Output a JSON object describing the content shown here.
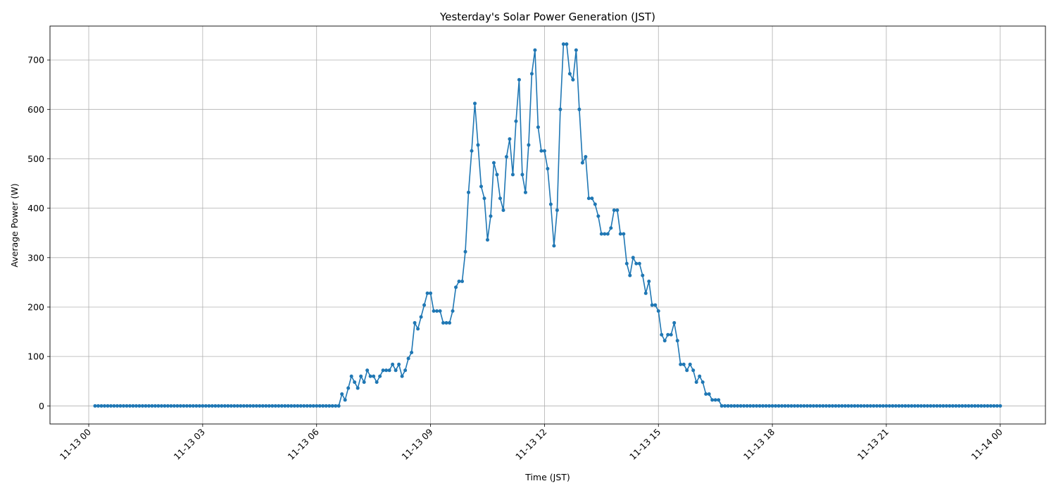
{
  "chart_data": {
    "type": "line",
    "title": "Yesterday's Solar Power Generation (JST)",
    "xlabel": "Time (JST)",
    "ylabel": "Average Power (W)",
    "ylim": [
      -36.6,
      768.6
    ],
    "xlim_hours": [
      -1.02,
      25.19
    ],
    "grid": true,
    "marker": "dot",
    "color": "#1f77b4",
    "x_ticks": [
      "11-13 00",
      "11-13 03",
      "11-13 06",
      "11-13 09",
      "11-13 12",
      "11-13 15",
      "11-13 18",
      "11-13 21",
      "11-14 00"
    ],
    "y_ticks": [
      0,
      100,
      200,
      300,
      400,
      500,
      600,
      700
    ],
    "x": [
      "11-13 00:10",
      "11-13 00:15",
      "11-13 00:20",
      "11-13 00:25",
      "11-13 00:30",
      "11-13 00:35",
      "11-13 00:40",
      "11-13 00:45",
      "11-13 00:50",
      "11-13 00:55",
      "11-13 01:00",
      "11-13 01:05",
      "11-13 01:10",
      "11-13 01:15",
      "11-13 01:20",
      "11-13 01:25",
      "11-13 01:30",
      "11-13 01:35",
      "11-13 01:40",
      "11-13 01:45",
      "11-13 01:50",
      "11-13 01:55",
      "11-13 02:00",
      "11-13 02:05",
      "11-13 02:10",
      "11-13 02:15",
      "11-13 02:20",
      "11-13 02:25",
      "11-13 02:30",
      "11-13 02:35",
      "11-13 02:40",
      "11-13 02:45",
      "11-13 02:50",
      "11-13 02:55",
      "11-13 03:00",
      "11-13 03:05",
      "11-13 03:10",
      "11-13 03:15",
      "11-13 03:20",
      "11-13 03:25",
      "11-13 03:30",
      "11-13 03:35",
      "11-13 03:40",
      "11-13 03:45",
      "11-13 03:50",
      "11-13 03:55",
      "11-13 04:00",
      "11-13 04:05",
      "11-13 04:10",
      "11-13 04:15",
      "11-13 04:20",
      "11-13 04:25",
      "11-13 04:30",
      "11-13 04:35",
      "11-13 04:40",
      "11-13 04:45",
      "11-13 04:50",
      "11-13 04:55",
      "11-13 05:00",
      "11-13 05:05",
      "11-13 05:10",
      "11-13 05:15",
      "11-13 05:20",
      "11-13 05:25",
      "11-13 05:30",
      "11-13 05:35",
      "11-13 05:40",
      "11-13 05:45",
      "11-13 05:50",
      "11-13 05:55",
      "11-13 06:00",
      "11-13 06:05",
      "11-13 06:10",
      "11-13 06:15",
      "11-13 06:20",
      "11-13 06:25",
      "11-13 06:30",
      "11-13 06:35",
      "11-13 06:40",
      "11-13 06:45",
      "11-13 06:50",
      "11-13 06:55",
      "11-13 07:00",
      "11-13 07:05",
      "11-13 07:10",
      "11-13 07:15",
      "11-13 07:20",
      "11-13 07:25",
      "11-13 07:30",
      "11-13 07:35",
      "11-13 07:40",
      "11-13 07:45",
      "11-13 07:50",
      "11-13 07:55",
      "11-13 08:00",
      "11-13 08:05",
      "11-13 08:10",
      "11-13 08:15",
      "11-13 08:20",
      "11-13 08:25",
      "11-13 08:30",
      "11-13 08:35",
      "11-13 08:40",
      "11-13 08:45",
      "11-13 08:50",
      "11-13 08:55",
      "11-13 09:00",
      "11-13 09:05",
      "11-13 09:10",
      "11-13 09:15",
      "11-13 09:20",
      "11-13 09:25",
      "11-13 09:30",
      "11-13 09:35",
      "11-13 09:40",
      "11-13 09:45",
      "11-13 09:50",
      "11-13 09:55",
      "11-13 10:00",
      "11-13 10:05",
      "11-13 10:10",
      "11-13 10:15",
      "11-13 10:20",
      "11-13 10:25",
      "11-13 10:30",
      "11-13 10:35",
      "11-13 10:40",
      "11-13 10:45",
      "11-13 10:50",
      "11-13 10:55",
      "11-13 11:00",
      "11-13 11:05",
      "11-13 11:10",
      "11-13 11:15",
      "11-13 11:20",
      "11-13 11:25",
      "11-13 11:30",
      "11-13 11:35",
      "11-13 11:40",
      "11-13 11:45",
      "11-13 11:50",
      "11-13 11:55",
      "11-13 12:00",
      "11-13 12:05",
      "11-13 12:10",
      "11-13 12:15",
      "11-13 12:20",
      "11-13 12:25",
      "11-13 12:30",
      "11-13 12:35",
      "11-13 12:40",
      "11-13 12:45",
      "11-13 12:50",
      "11-13 12:55",
      "11-13 13:00",
      "11-13 13:05",
      "11-13 13:10",
      "11-13 13:15",
      "11-13 13:20",
      "11-13 13:25",
      "11-13 13:30",
      "11-13 13:35",
      "11-13 13:40",
      "11-13 13:45",
      "11-13 13:50",
      "11-13 13:55",
      "11-13 14:00",
      "11-13 14:05",
      "11-13 14:10",
      "11-13 14:15",
      "11-13 14:20",
      "11-13 14:25",
      "11-13 14:30",
      "11-13 14:35",
      "11-13 14:40",
      "11-13 14:45",
      "11-13 14:50",
      "11-13 14:55",
      "11-13 15:00",
      "11-13 15:05",
      "11-13 15:10",
      "11-13 15:15",
      "11-13 15:20",
      "11-13 15:25",
      "11-13 15:30",
      "11-13 15:35",
      "11-13 15:40",
      "11-13 15:45",
      "11-13 15:50",
      "11-13 15:55",
      "11-13 16:00",
      "11-13 16:05",
      "11-13 16:10",
      "11-13 16:15",
      "11-13 16:20",
      "11-13 16:25",
      "11-13 16:30",
      "11-13 16:35",
      "11-13 16:40",
      "11-13 16:45",
      "11-13 16:50",
      "11-13 16:55",
      "11-13 17:00",
      "11-13 17:05",
      "11-13 17:10",
      "11-13 17:15",
      "11-13 17:20",
      "11-13 17:25",
      "11-13 17:30",
      "11-13 17:35",
      "11-13 17:40",
      "11-13 17:45",
      "11-13 17:50",
      "11-13 17:55",
      "11-13 18:00",
      "11-13 18:05",
      "11-13 18:10",
      "11-13 18:15",
      "11-13 18:20",
      "11-13 18:25",
      "11-13 18:30",
      "11-13 18:35",
      "11-13 18:40",
      "11-13 18:45",
      "11-13 18:50",
      "11-13 18:55",
      "11-13 19:00",
      "11-13 19:05",
      "11-13 19:10",
      "11-13 19:15",
      "11-13 19:20",
      "11-13 19:25",
      "11-13 19:30",
      "11-13 19:35",
      "11-13 19:40",
      "11-13 19:45",
      "11-13 19:50",
      "11-13 19:55",
      "11-13 20:00",
      "11-13 20:05",
      "11-13 20:10",
      "11-13 20:15",
      "11-13 20:20",
      "11-13 20:25",
      "11-13 20:30",
      "11-13 20:35",
      "11-13 20:40",
      "11-13 20:45",
      "11-13 20:50",
      "11-13 20:55",
      "11-13 21:00",
      "11-13 21:05",
      "11-13 21:10",
      "11-13 21:15",
      "11-13 21:20",
      "11-13 21:25",
      "11-13 21:30",
      "11-13 21:35",
      "11-13 21:40",
      "11-13 21:45",
      "11-13 21:50",
      "11-13 21:55",
      "11-13 22:00",
      "11-13 22:05",
      "11-13 22:10",
      "11-13 22:15",
      "11-13 22:20",
      "11-13 22:25",
      "11-13 22:30",
      "11-13 22:35",
      "11-13 22:40",
      "11-13 22:45",
      "11-13 22:50",
      "11-13 22:55",
      "11-13 23:00",
      "11-13 23:05",
      "11-13 23:10",
      "11-13 23:15",
      "11-13 23:20",
      "11-13 23:25",
      "11-13 23:30",
      "11-13 23:35",
      "11-13 23:40",
      "11-13 23:45",
      "11-13 23:50",
      "11-13 23:55",
      "11-14 00:00"
    ],
    "y": [
      0,
      0,
      0,
      0,
      0,
      0,
      0,
      0,
      0,
      0,
      0,
      0,
      0,
      0,
      0,
      0,
      0,
      0,
      0,
      0,
      0,
      0,
      0,
      0,
      0,
      0,
      0,
      0,
      0,
      0,
      0,
      0,
      0,
      0,
      0,
      0,
      0,
      0,
      0,
      0,
      0,
      0,
      0,
      0,
      0,
      0,
      0,
      0,
      0,
      0,
      0,
      0,
      0,
      0,
      0,
      0,
      0,
      0,
      0,
      0,
      0,
      0,
      0,
      0,
      0,
      0,
      0,
      0,
      0,
      0,
      0,
      0,
      0,
      0,
      0,
      0,
      0,
      0,
      24,
      12,
      36,
      60,
      48,
      36,
      60,
      48,
      72,
      60,
      60,
      48,
      60,
      72,
      72,
      72,
      84,
      72,
      84,
      60,
      72,
      96,
      108,
      168,
      156,
      180,
      204,
      228,
      228,
      192,
      192,
      192,
      168,
      168,
      168,
      192,
      240,
      252,
      252,
      312,
      432,
      516,
      612,
      528,
      444,
      420,
      336,
      384,
      492,
      468,
      420,
      396,
      504,
      540,
      468,
      576,
      660,
      468,
      432,
      528,
      672,
      720,
      564,
      516,
      516,
      480,
      408,
      324,
      396,
      600,
      732,
      732,
      672,
      660,
      720,
      600,
      492,
      504,
      420,
      420,
      408,
      384,
      348,
      348,
      348,
      360,
      396,
      396,
      348,
      348,
      288,
      264,
      300,
      288,
      288,
      264,
      228,
      252,
      204,
      204,
      192,
      144,
      132,
      144,
      144,
      168,
      132,
      84,
      84,
      72,
      84,
      72,
      48,
      60,
      48,
      24,
      24,
      12,
      12,
      12,
      0,
      0,
      0,
      0,
      0,
      0,
      0,
      0,
      0,
      0,
      0,
      0,
      0,
      0,
      0,
      0,
      0,
      0,
      0,
      0,
      0,
      0,
      0,
      0,
      0,
      0,
      0,
      0,
      0,
      0,
      0,
      0,
      0,
      0,
      0,
      0,
      0,
      0,
      0,
      0,
      0,
      0,
      0,
      0,
      0,
      0,
      0,
      0,
      0,
      0,
      0,
      0,
      0,
      0,
      0,
      0,
      0,
      0,
      0,
      0,
      0,
      0,
      0,
      0,
      0,
      0,
      0,
      0,
      0,
      0,
      0,
      0,
      0,
      0,
      0,
      0,
      0,
      0,
      0,
      0,
      0,
      0,
      0,
      0,
      0,
      0,
      0,
      0,
      0
    ]
  }
}
